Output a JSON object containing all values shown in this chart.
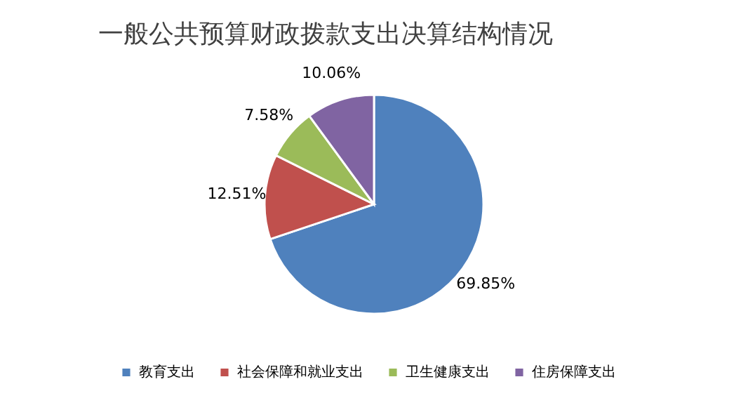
{
  "chart_data": {
    "type": "pie",
    "title": "一般公共预算财政拨款支出决算结构情况",
    "categories": [
      "教育支出",
      "社会保障和就业支出",
      "卫生健康支出",
      "住房保障支出"
    ],
    "values": [
      69.85,
      12.51,
      7.58,
      10.06
    ],
    "colors": [
      "#4f81bd",
      "#c0504d",
      "#9bbb59",
      "#8064a2"
    ],
    "value_labels": [
      "69.85%",
      "12.51%",
      "7.58%",
      "10.06%"
    ],
    "legend": "bottom"
  }
}
